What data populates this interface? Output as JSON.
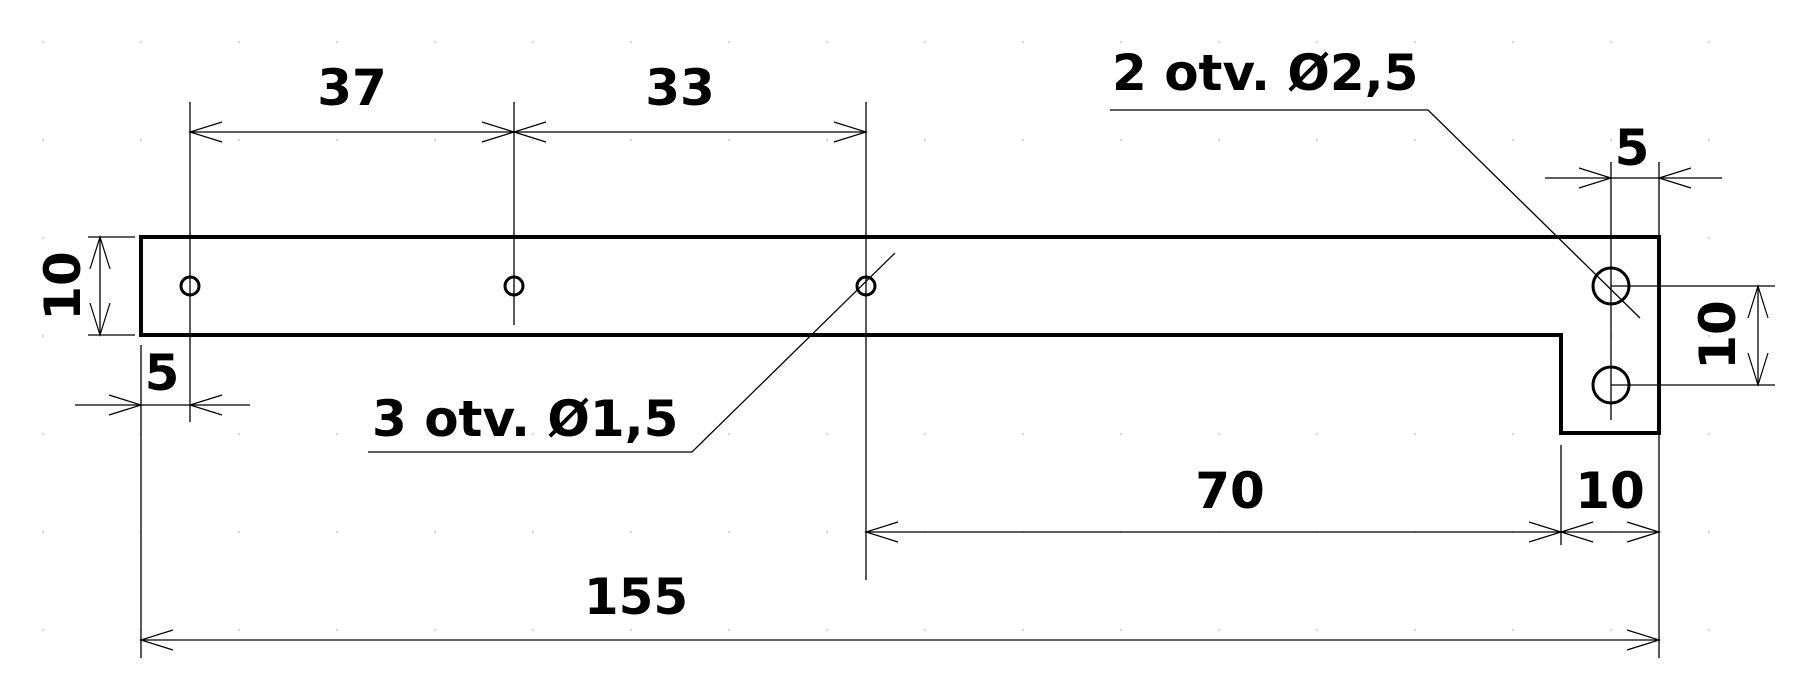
{
  "drawing": {
    "dimensions": {
      "hole_spacing_1": "37",
      "hole_spacing_2": "33",
      "strip_height": "10",
      "left_edge_offset": "5",
      "tab_edge_offset": "5",
      "tab_hole_spacing": "10",
      "tab_to_hole_distance": "70",
      "tab_width": "10",
      "overall_length": "155"
    },
    "callouts": {
      "small_holes": "3 otv. Ø1,5",
      "large_holes": "2 otv. Ø2,5"
    }
  }
}
